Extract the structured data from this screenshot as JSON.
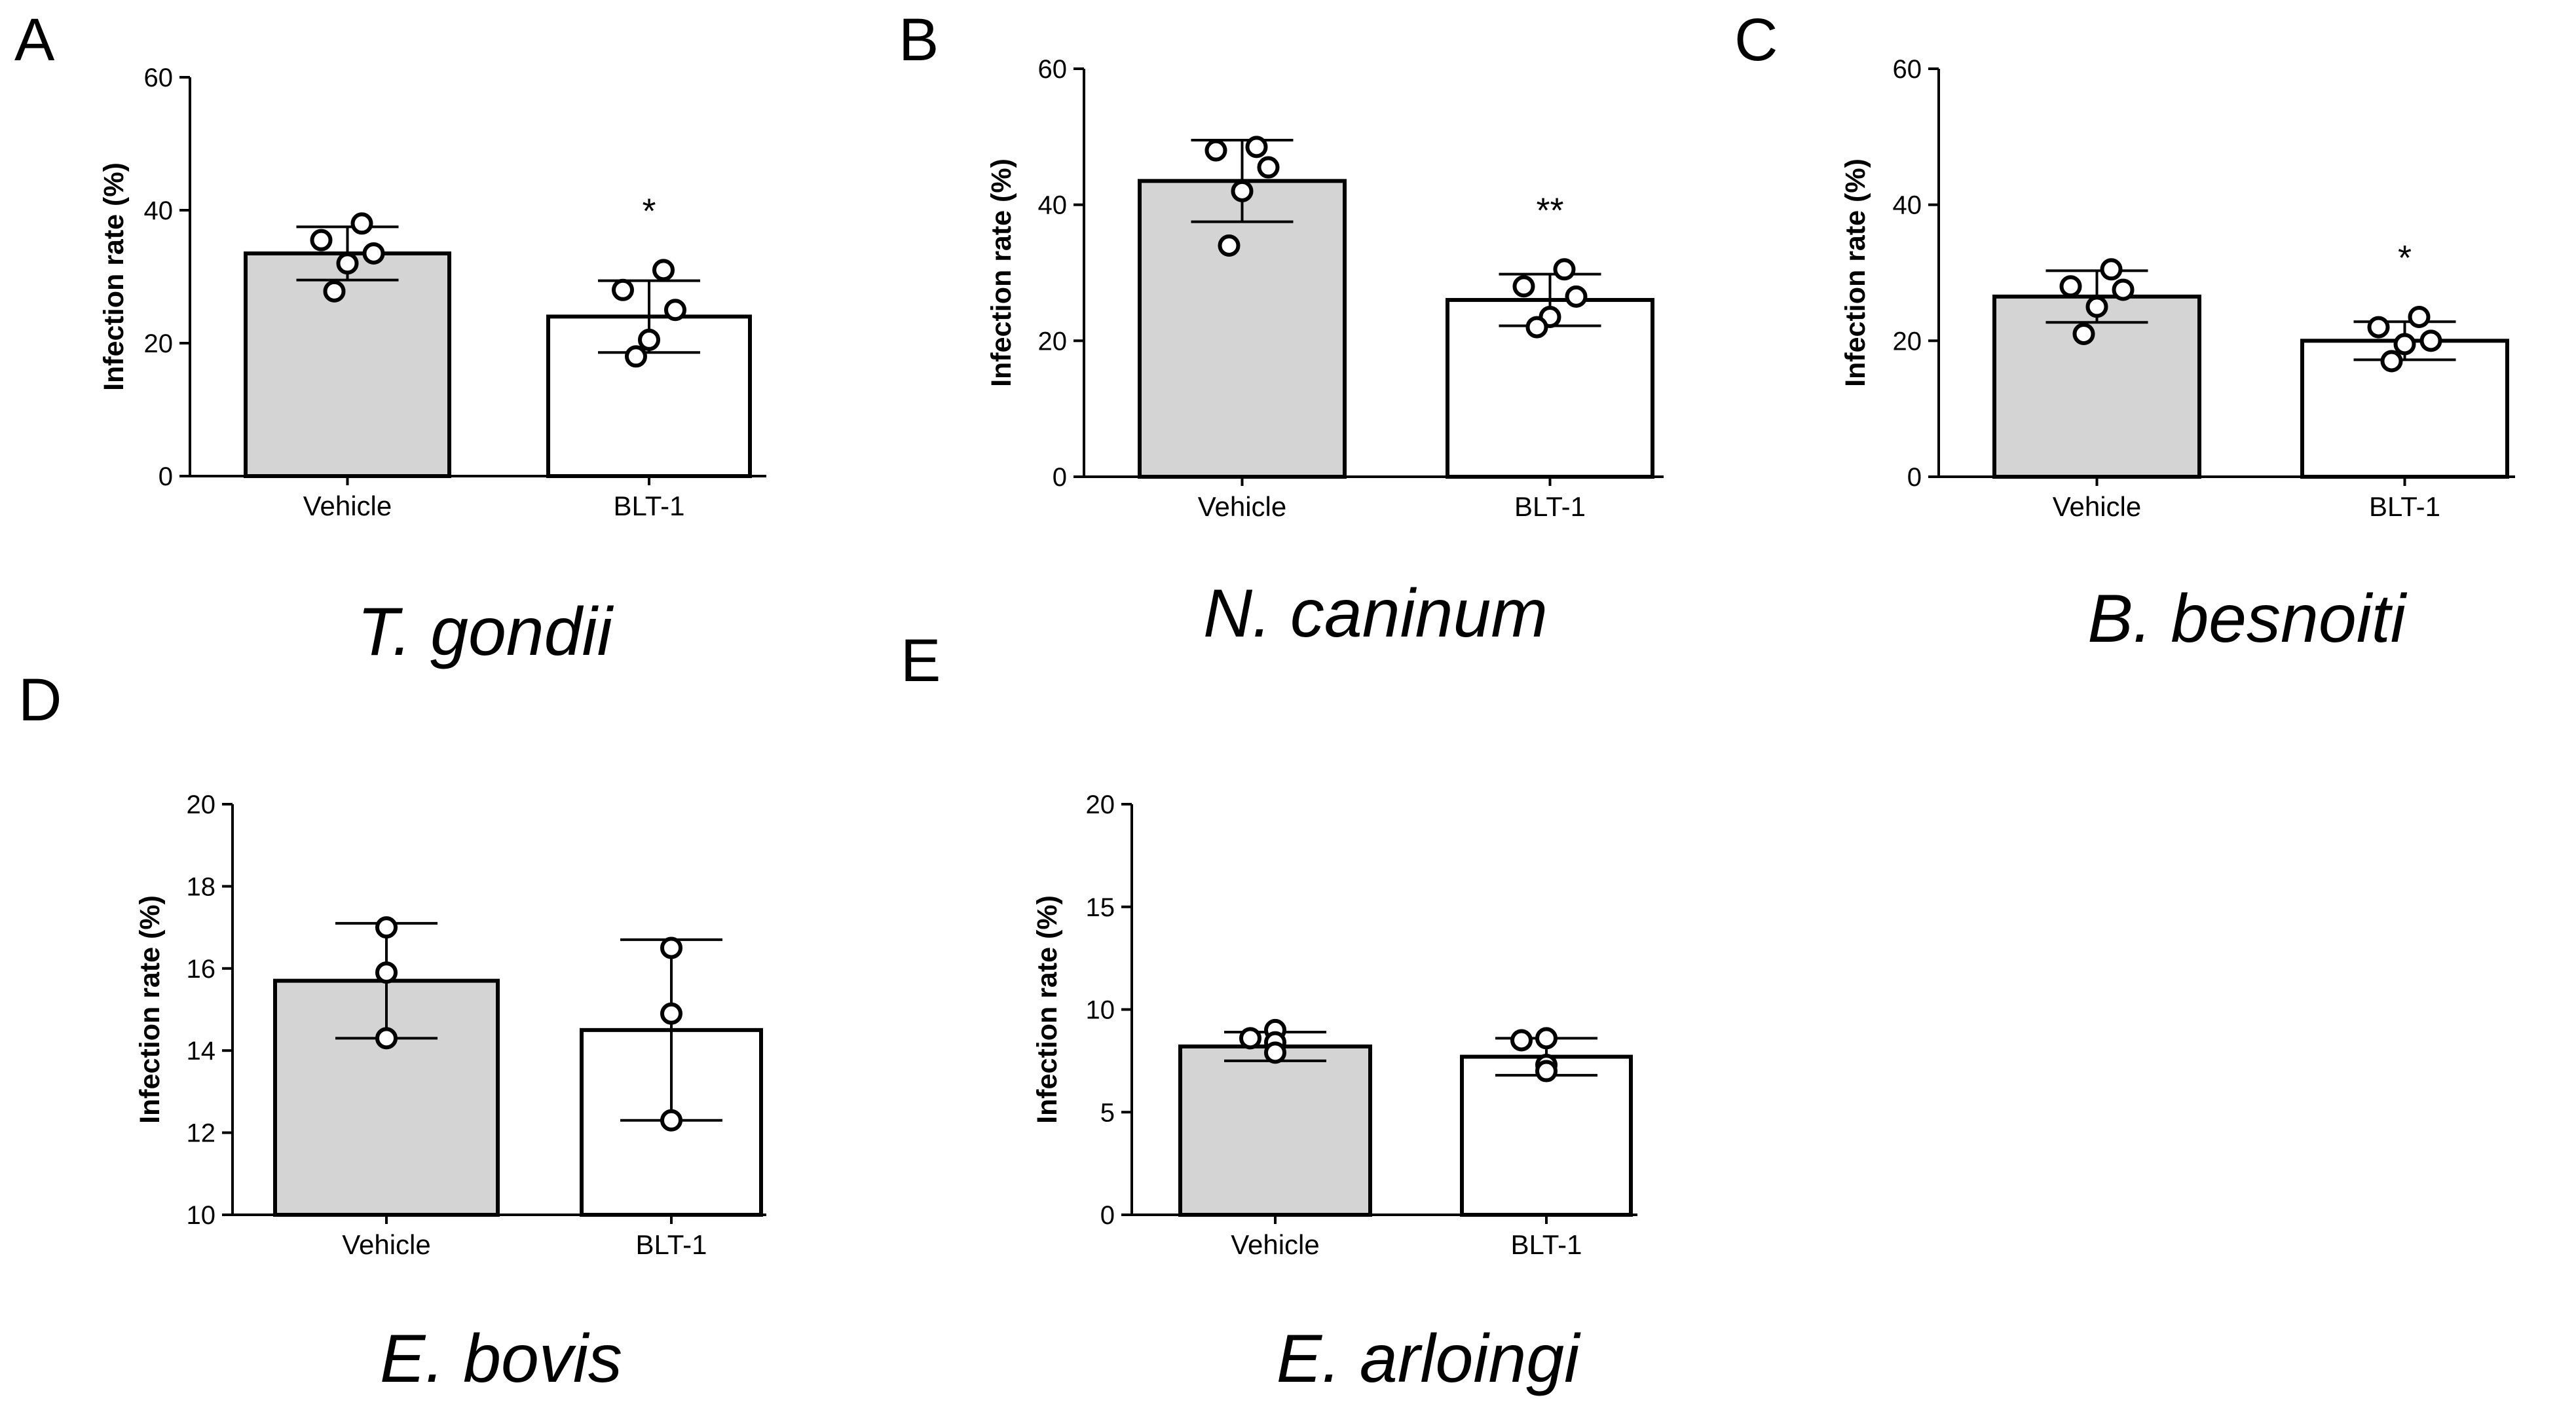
{
  "figure": {
    "type": "multi-panel bar chart"
  },
  "colors": {
    "vehicle_fill": "#d4d4d4",
    "blt1_fill": "#ffffff",
    "ink": "#000000"
  },
  "chart_data": [
    {
      "panel": "A",
      "type": "bar",
      "species": "T. gondii",
      "ylabel": "Infection rate (%)",
      "ylim": [
        0,
        60
      ],
      "yticks": [
        0,
        20,
        40,
        60
      ],
      "categories": [
        "Vehicle",
        "BLT-1"
      ],
      "values": [
        33.5,
        24.0
      ],
      "sd": [
        4.0,
        5.4
      ],
      "points": [
        [
          38.0,
          35.5,
          33.5,
          32.0,
          27.8
        ],
        [
          31.0,
          28.0,
          25.0,
          20.5,
          18.0
        ]
      ],
      "significance": [
        "",
        "*"
      ]
    },
    {
      "panel": "B",
      "type": "bar",
      "species": "N. caninum",
      "ylabel": "Infection rate (%)",
      "ylim": [
        0,
        60
      ],
      "yticks": [
        0,
        20,
        40,
        60
      ],
      "categories": [
        "Vehicle",
        "BLT-1"
      ],
      "values": [
        43.5,
        26.0
      ],
      "sd": [
        6.0,
        3.8
      ],
      "points": [
        [
          48.5,
          48.0,
          45.5,
          42.0,
          34.0
        ],
        [
          30.5,
          28.0,
          26.5,
          23.5,
          22.0
        ]
      ],
      "significance": [
        "",
        "**"
      ]
    },
    {
      "panel": "C",
      "type": "bar",
      "species": "B. besnoiti",
      "ylabel": "Infection rate (%)",
      "ylim": [
        0,
        60
      ],
      "yticks": [
        0,
        20,
        40,
        60
      ],
      "categories": [
        "Vehicle",
        "BLT-1"
      ],
      "values": [
        26.5,
        20.0
      ],
      "sd": [
        3.8,
        2.8
      ],
      "points": [
        [
          30.5,
          28.0,
          27.5,
          25.0,
          21.0
        ],
        [
          23.5,
          22.0,
          20.0,
          19.5,
          17.0
        ]
      ],
      "significance": [
        "",
        "*"
      ]
    },
    {
      "panel": "D",
      "type": "bar",
      "species": "E. bovis",
      "ylabel": "Infection rate (%)",
      "ylim": [
        10,
        20
      ],
      "yticks": [
        10,
        12,
        14,
        16,
        18,
        20
      ],
      "categories": [
        "Vehicle",
        "BLT-1"
      ],
      "values": [
        15.7,
        14.5
      ],
      "sd": [
        1.4,
        2.2
      ],
      "points": [
        [
          17.0,
          15.9,
          14.3
        ],
        [
          16.5,
          14.9,
          12.3
        ]
      ],
      "significance": [
        "",
        ""
      ]
    },
    {
      "panel": "E",
      "type": "bar",
      "species": "E. arloingi",
      "ylabel": "Infection rate (%)",
      "ylim": [
        0,
        20
      ],
      "yticks": [
        0,
        5,
        10,
        15,
        20
      ],
      "categories": [
        "Vehicle",
        "BLT-1"
      ],
      "values": [
        8.2,
        7.7
      ],
      "sd": [
        0.7,
        0.9
      ],
      "points": [
        [
          9.0,
          8.6,
          8.4,
          7.9
        ],
        [
          8.6,
          8.5,
          7.3,
          7.0
        ]
      ],
      "significance": [
        "",
        ""
      ]
    }
  ]
}
